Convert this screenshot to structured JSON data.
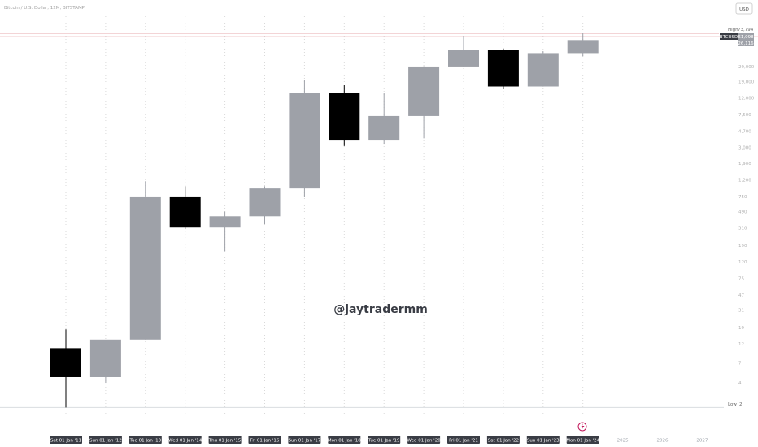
{
  "header": {
    "series_title": "Bitcoin / U.S. Dollar, 12M, BITSTAMP",
    "currency": "USD"
  },
  "watermark": "@jaytradermm",
  "colors": {
    "up": "#9ea1a8",
    "down": "#000000",
    "label_bg": "#3a3d45",
    "high_line": "#e7a9ad",
    "low_line": "#d9dde0",
    "event_marker": "#c2185b"
  },
  "markers": {
    "high": {
      "label": "High",
      "value_text": "73,794"
    },
    "low": {
      "label": "Low",
      "value_text": "2"
    },
    "symbol": {
      "label": "BTCUSD",
      "price_text": "61,098",
      "countdown_text": "26,116"
    }
  },
  "event_icon": "lightning-bolt-icon",
  "chart_data": {
    "type": "candlestick",
    "title": "Bitcoin / U.S. Dollar, 12M, BITSTAMP",
    "y_scale": "log",
    "ylim": [
      1.8,
      95000
    ],
    "y_ticks": [
      "2",
      "4",
      "7",
      "12",
      "19",
      "31",
      "47",
      "75",
      "120",
      "190",
      "310",
      "490",
      "750",
      "1,200",
      "1,900",
      "3,000",
      "4,700",
      "7,500",
      "12,000",
      "19,000",
      "29,000"
    ],
    "x_labels": [
      "Sat 01 Jan '11",
      "Sun 01 Jan '12",
      "Tue 01 Jan '13",
      "Wed 01 Jan '14",
      "Thu 01 Jan '15",
      "Fri 01 Jan '16",
      "Sun 01 Jan '17",
      "Mon 01 Jan '18",
      "Tue 01 Jan '19",
      "Wed 01 Jan '20",
      "Fri 01 Jan '21",
      "Sat 01 Jan '22",
      "Sun 01 Jan '23",
      "Mon 01 Jan '24"
    ],
    "future_labels": [
      "2025",
      "2026",
      "2027"
    ],
    "candles": [
      {
        "open": 10.6,
        "high": 18,
        "low": 2.0,
        "close": 4.7
      },
      {
        "open": 4.7,
        "high": 13,
        "low": 4.0,
        "close": 13.5
      },
      {
        "open": 13.5,
        "high": 1150,
        "low": 13.5,
        "close": 750
      },
      {
        "open": 750,
        "high": 1000,
        "low": 300,
        "close": 320
      },
      {
        "open": 320,
        "high": 490,
        "low": 160,
        "close": 430
      },
      {
        "open": 430,
        "high": 1000,
        "low": 350,
        "close": 960
      },
      {
        "open": 960,
        "high": 19900,
        "low": 750,
        "close": 13800
      },
      {
        "open": 13800,
        "high": 17200,
        "low": 3100,
        "close": 3700
      },
      {
        "open": 3700,
        "high": 13800,
        "low": 3300,
        "close": 7200
      },
      {
        "open": 7200,
        "high": 29300,
        "low": 3850,
        "close": 29000
      },
      {
        "open": 29000,
        "high": 69000,
        "low": 28500,
        "close": 46300
      },
      {
        "open": 46300,
        "high": 48200,
        "low": 15500,
        "close": 16550
      },
      {
        "open": 16550,
        "high": 44700,
        "low": 16500,
        "close": 42300
      },
      {
        "open": 42300,
        "high": 73794,
        "low": 38500,
        "close": 61098
      }
    ],
    "high_value": 73794,
    "low_value": 2
  }
}
